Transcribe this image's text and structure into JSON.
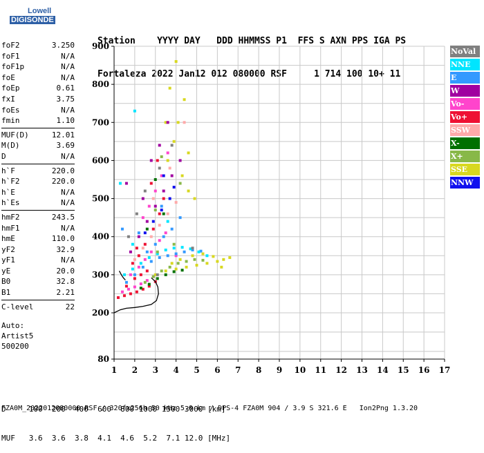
{
  "logo": {
    "line1": "Lowell",
    "line2": "DIGISONDE"
  },
  "header": {
    "line1": "Station    YYYY DAY   DDD HHMMSS P1  FFS S AXN PPS IGA PS",
    "line2": "Fortaleza 2022 Jan12 012 080000 RSF     1 714 100 10+ 11"
  },
  "params": [
    {
      "group": [
        {
          "name": "foF2",
          "value": "3.250"
        },
        {
          "name": "foF1",
          "value": "N/A"
        },
        {
          "name": "foF1p",
          "value": "N/A"
        },
        {
          "name": "foE",
          "value": "N/A"
        },
        {
          "name": "foEp",
          "value": "0.61"
        },
        {
          "name": "fxI",
          "value": "3.75"
        },
        {
          "name": "foEs",
          "value": "N/A"
        },
        {
          "name": "fmin",
          "value": "1.10"
        }
      ]
    },
    {
      "group": [
        {
          "name": "MUF(D)",
          "value": "12.01"
        },
        {
          "name": "M(D)",
          "value": "3.69"
        },
        {
          "name": "D",
          "value": "N/A"
        }
      ]
    },
    {
      "group": [
        {
          "name": "h`F",
          "value": "220.0"
        },
        {
          "name": "h`F2",
          "value": "220.0"
        },
        {
          "name": "h`E",
          "value": "N/A"
        },
        {
          "name": "h`Es",
          "value": "N/A"
        }
      ]
    },
    {
      "group": [
        {
          "name": "hmF2",
          "value": "243.5"
        },
        {
          "name": "hmF1",
          "value": "N/A"
        },
        {
          "name": "hmE",
          "value": "110.0"
        },
        {
          "name": "yF2",
          "value": "32.9"
        },
        {
          "name": "yF1",
          "value": "N/A"
        },
        {
          "name": "yE",
          "value": "20.0"
        },
        {
          "name": "B0",
          "value": "32.8"
        },
        {
          "name": "B1",
          "value": "2.21"
        }
      ]
    },
    {
      "group": [
        {
          "name": "C-level",
          "value": "22"
        }
      ]
    }
  ],
  "auto": [
    "Auto:",
    "Artist5",
    "500200"
  ],
  "legend": [
    {
      "label": "NoVal",
      "color": "#808080"
    },
    {
      "label": "NNE",
      "color": "#00e5ff"
    },
    {
      "label": "E",
      "color": "#3399ff"
    },
    {
      "label": "W",
      "color": "#a000a0"
    },
    {
      "label": "Vo-",
      "color": "#ff44cc"
    },
    {
      "label": "Vo+",
      "color": "#ee1133"
    },
    {
      "label": "SSW",
      "color": "#ffaaaa"
    },
    {
      "label": "X-",
      "color": "#007000"
    },
    {
      "label": "X+",
      "color": "#88b848"
    },
    {
      "label": "SSE",
      "color": "#d8d820"
    },
    {
      "label": "NNW",
      "color": "#1010ee"
    }
  ],
  "bottom": {
    "line1": "D     100  200  400  600  800 1000 1500 3000 [km]",
    "line2": "MUF   3.6  3.6  3.8  4.1  4.6  5.2  7.1 12.0 [MHz]"
  },
  "footer": "FZA0M_2022012080000.RSF / 320fx256h 50 kHz 5.0 km / DPS-4 FZA0M 904 / 3.9 S 321.6 E   Ion2Png 1.3.20",
  "chart_data": {
    "type": "scatter",
    "title": "",
    "xlabel": "",
    "ylabel": "",
    "xlim": [
      1,
      17
    ],
    "ylim": [
      80,
      900
    ],
    "x_ticks": [
      1,
      2,
      3,
      4,
      5,
      6,
      7,
      8,
      9,
      10,
      11,
      12,
      13,
      14,
      15,
      16,
      17
    ],
    "y_ticks": [
      80,
      200,
      300,
      400,
      500,
      600,
      700,
      800,
      900
    ],
    "grid": true,
    "series": [
      {
        "name": "Vo+",
        "color": "#ee1133",
        "points": [
          [
            1.2,
            240
          ],
          [
            1.5,
            245
          ],
          [
            1.8,
            250
          ],
          [
            2.1,
            255
          ],
          [
            2.4,
            262
          ],
          [
            2.7,
            270
          ],
          [
            3.0,
            282
          ],
          [
            1.6,
            270
          ],
          [
            2.0,
            290
          ],
          [
            2.3,
            300
          ],
          [
            2.6,
            310
          ],
          [
            1.9,
            330
          ],
          [
            2.2,
            350
          ],
          [
            2.5,
            380
          ],
          [
            2.9,
            420
          ],
          [
            3.2,
            460
          ],
          [
            3.4,
            500
          ],
          [
            2.1,
            370
          ],
          [
            2.8,
            540
          ],
          [
            3.1,
            600
          ]
        ]
      },
      {
        "name": "Vo-",
        "color": "#ff44cc",
        "points": [
          [
            1.4,
            255
          ],
          [
            1.7,
            262
          ],
          [
            2.0,
            268
          ],
          [
            2.3,
            276
          ],
          [
            2.6,
            285
          ],
          [
            2.9,
            295
          ],
          [
            1.8,
            300
          ],
          [
            2.2,
            320
          ],
          [
            2.5,
            340
          ],
          [
            2.8,
            360
          ],
          [
            3.2,
            390
          ],
          [
            3.5,
            410
          ],
          [
            2.4,
            450
          ],
          [
            2.7,
            480
          ],
          [
            3.0,
            520
          ],
          [
            3.3,
            560
          ],
          [
            3.6,
            620
          ],
          [
            4.0,
            350
          ]
        ]
      },
      {
        "name": "E",
        "color": "#3399ff",
        "points": [
          [
            1.6,
            280
          ],
          [
            2.0,
            300
          ],
          [
            2.4,
            320
          ],
          [
            2.8,
            335
          ],
          [
            3.2,
            345
          ],
          [
            3.6,
            350
          ],
          [
            4.0,
            355
          ],
          [
            4.4,
            360
          ],
          [
            4.8,
            365
          ],
          [
            5.2,
            362
          ],
          [
            3.0,
            380
          ],
          [
            3.4,
            400
          ],
          [
            3.8,
            420
          ],
          [
            4.2,
            450
          ],
          [
            2.6,
            360
          ],
          [
            3.3,
            480
          ],
          [
            1.4,
            420
          ],
          [
            2.2,
            410
          ]
        ]
      },
      {
        "name": "NNE",
        "color": "#00e5ff",
        "points": [
          [
            1.5,
            300
          ],
          [
            1.9,
            315
          ],
          [
            2.3,
            330
          ],
          [
            2.7,
            345
          ],
          [
            3.1,
            355
          ],
          [
            3.5,
            365
          ],
          [
            3.9,
            370
          ],
          [
            4.3,
            372
          ],
          [
            4.7,
            368
          ],
          [
            5.1,
            360
          ],
          [
            5.5,
            350
          ],
          [
            2.0,
            730
          ],
          [
            1.3,
            540
          ],
          [
            1.9,
            380
          ],
          [
            3.6,
            440
          ]
        ]
      },
      {
        "name": "SSE",
        "color": "#d8d820",
        "points": [
          [
            3.0,
            300
          ],
          [
            3.5,
            310
          ],
          [
            4.0,
            315
          ],
          [
            4.5,
            320
          ],
          [
            5.0,
            325
          ],
          [
            5.5,
            330
          ],
          [
            6.0,
            335
          ],
          [
            6.3,
            340
          ],
          [
            6.6,
            345
          ],
          [
            3.8,
            330
          ],
          [
            4.2,
            340
          ],
          [
            4.8,
            350
          ],
          [
            5.3,
            355
          ],
          [
            5.8,
            348
          ],
          [
            6.2,
            320
          ],
          [
            3.6,
            600
          ],
          [
            3.9,
            650
          ],
          [
            4.1,
            700
          ],
          [
            4.3,
            560
          ],
          [
            4.6,
            520
          ],
          [
            4.9,
            500
          ],
          [
            4.4,
            760
          ],
          [
            3.7,
            790
          ],
          [
            4.0,
            860
          ],
          [
            3.5,
            700
          ],
          [
            4.6,
            620
          ]
        ]
      },
      {
        "name": "X+",
        "color": "#88b848",
        "points": [
          [
            2.5,
            280
          ],
          [
            2.9,
            295
          ],
          [
            3.3,
            310
          ],
          [
            3.7,
            320
          ],
          [
            4.1,
            330
          ],
          [
            4.5,
            335
          ],
          [
            4.9,
            340
          ],
          [
            5.3,
            338
          ],
          [
            3.1,
            360
          ],
          [
            3.9,
            380
          ],
          [
            3.3,
            610
          ],
          [
            4.2,
            540
          ],
          [
            3.0,
            470
          ]
        ]
      },
      {
        "name": "X-",
        "color": "#007000",
        "points": [
          [
            2.3,
            265
          ],
          [
            2.7,
            275
          ],
          [
            3.1,
            290
          ],
          [
            3.5,
            300
          ],
          [
            3.9,
            308
          ],
          [
            4.3,
            312
          ],
          [
            3.0,
            550
          ],
          [
            3.4,
            460
          ],
          [
            2.6,
            420
          ]
        ]
      },
      {
        "name": "W",
        "color": "#a000a0",
        "points": [
          [
            1.8,
            360
          ],
          [
            2.2,
            400
          ],
          [
            2.6,
            440
          ],
          [
            3.0,
            480
          ],
          [
            3.4,
            520
          ],
          [
            3.8,
            560
          ],
          [
            4.2,
            600
          ],
          [
            3.2,
            640
          ],
          [
            3.6,
            700
          ],
          [
            2.8,
            600
          ],
          [
            2.4,
            500
          ],
          [
            1.6,
            540
          ]
        ]
      },
      {
        "name": "SSW",
        "color": "#ffaaaa",
        "points": [
          [
            2.0,
            340
          ],
          [
            2.4,
            370
          ],
          [
            2.8,
            400
          ],
          [
            3.2,
            430
          ],
          [
            3.6,
            460
          ],
          [
            4.0,
            490
          ],
          [
            3.7,
            580
          ],
          [
            2.9,
            500
          ],
          [
            4.4,
            700
          ]
        ]
      },
      {
        "name": "NNW",
        "color": "#1010ee",
        "points": [
          [
            2.5,
            410
          ],
          [
            2.9,
            440
          ],
          [
            3.3,
            470
          ],
          [
            3.7,
            500
          ],
          [
            3.9,
            530
          ],
          [
            3.4,
            560
          ]
        ]
      },
      {
        "name": "NoVal",
        "color": "#808080",
        "points": [
          [
            1.7,
            400
          ],
          [
            2.1,
            460
          ],
          [
            2.5,
            520
          ],
          [
            3.2,
            580
          ],
          [
            3.8,
            640
          ],
          [
            3.1,
            300
          ],
          [
            4.8,
            370
          ]
        ]
      }
    ],
    "lines": [
      {
        "name": "profile",
        "color": "#000000",
        "points": [
          [
            1.0,
            200
          ],
          [
            1.3,
            208
          ],
          [
            1.6,
            212
          ],
          [
            2.0,
            214
          ],
          [
            2.4,
            217
          ],
          [
            2.8,
            222
          ],
          [
            3.05,
            232
          ],
          [
            3.15,
            250
          ],
          [
            3.12,
            268
          ],
          [
            3.0,
            282
          ],
          [
            2.8,
            292
          ]
        ]
      },
      {
        "name": "trace",
        "color": "#000000",
        "points": [
          [
            1.25,
            310
          ],
          [
            1.35,
            300
          ],
          [
            1.45,
            292
          ],
          [
            1.55,
            286
          ]
        ]
      }
    ]
  }
}
